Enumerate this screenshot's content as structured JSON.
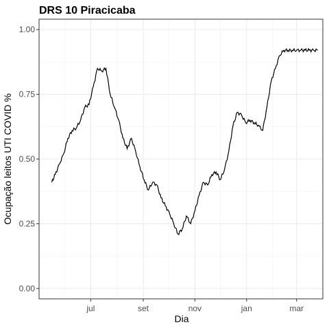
{
  "chart_data": {
    "type": "line",
    "title": "DRS 10 Piracicaba",
    "xlabel": "Dia",
    "ylabel": "Ocupação leitos UTI COVID %",
    "ylim": [
      -0.04,
      1.04
    ],
    "y_ticks": [
      0.0,
      0.25,
      0.5,
      0.75,
      1.0
    ],
    "y_tick_labels": [
      "0.00",
      "0.25",
      "0.50",
      "0.75",
      "1.00"
    ],
    "x_tick_labels": [
      "jul",
      "set",
      "nov",
      "jan",
      "mar"
    ],
    "grid": true,
    "colors": {
      "line": "#000000",
      "panel_border": "#333333",
      "grid": "#ebebeb"
    },
    "series": [
      {
        "x": [
          "2020-05-16",
          "2020-05-20",
          "2020-05-25",
          "2020-05-30",
          "2020-06-04",
          "2020-06-09",
          "2020-06-14",
          "2020-06-19",
          "2020-06-24",
          "2020-06-29",
          "2020-07-04",
          "2020-07-09",
          "2020-07-14",
          "2020-07-19",
          "2020-07-24",
          "2020-07-29",
          "2020-08-03",
          "2020-08-08",
          "2020-08-13",
          "2020-08-18",
          "2020-08-23",
          "2020-08-28",
          "2020-09-02",
          "2020-09-07",
          "2020-09-12",
          "2020-09-17",
          "2020-09-22",
          "2020-09-27",
          "2020-10-02",
          "2020-10-07",
          "2020-10-12",
          "2020-10-17",
          "2020-10-22",
          "2020-10-27",
          "2020-11-01",
          "2020-11-06",
          "2020-11-11",
          "2020-11-16",
          "2020-11-21",
          "2020-11-26",
          "2020-12-01",
          "2020-12-06",
          "2020-12-11",
          "2020-12-16",
          "2020-12-21",
          "2020-12-26",
          "2020-12-31",
          "2021-01-05",
          "2021-01-10",
          "2021-01-15",
          "2021-01-20",
          "2021-01-25",
          "2021-01-30",
          "2021-02-04",
          "2021-02-09",
          "2021-02-14",
          "2021-02-19",
          "2021-02-24",
          "2021-03-01",
          "2021-03-06",
          "2021-03-11",
          "2021-03-16",
          "2021-03-21",
          "2021-03-26"
        ],
        "values": [
          0.41,
          0.44,
          0.48,
          0.52,
          0.58,
          0.61,
          0.62,
          0.65,
          0.7,
          0.71,
          0.78,
          0.85,
          0.84,
          0.85,
          0.75,
          0.7,
          0.65,
          0.58,
          0.54,
          0.58,
          0.53,
          0.47,
          0.42,
          0.38,
          0.41,
          0.4,
          0.35,
          0.32,
          0.29,
          0.25,
          0.21,
          0.23,
          0.28,
          0.25,
          0.3,
          0.36,
          0.41,
          0.4,
          0.44,
          0.45,
          0.42,
          0.46,
          0.53,
          0.63,
          0.68,
          0.67,
          0.64,
          0.65,
          0.64,
          0.63,
          0.61,
          0.7,
          0.8,
          0.85,
          0.9,
          0.92,
          0.92,
          0.92,
          0.92,
          0.92,
          0.92,
          0.92,
          0.92,
          0.92
        ]
      }
    ]
  }
}
